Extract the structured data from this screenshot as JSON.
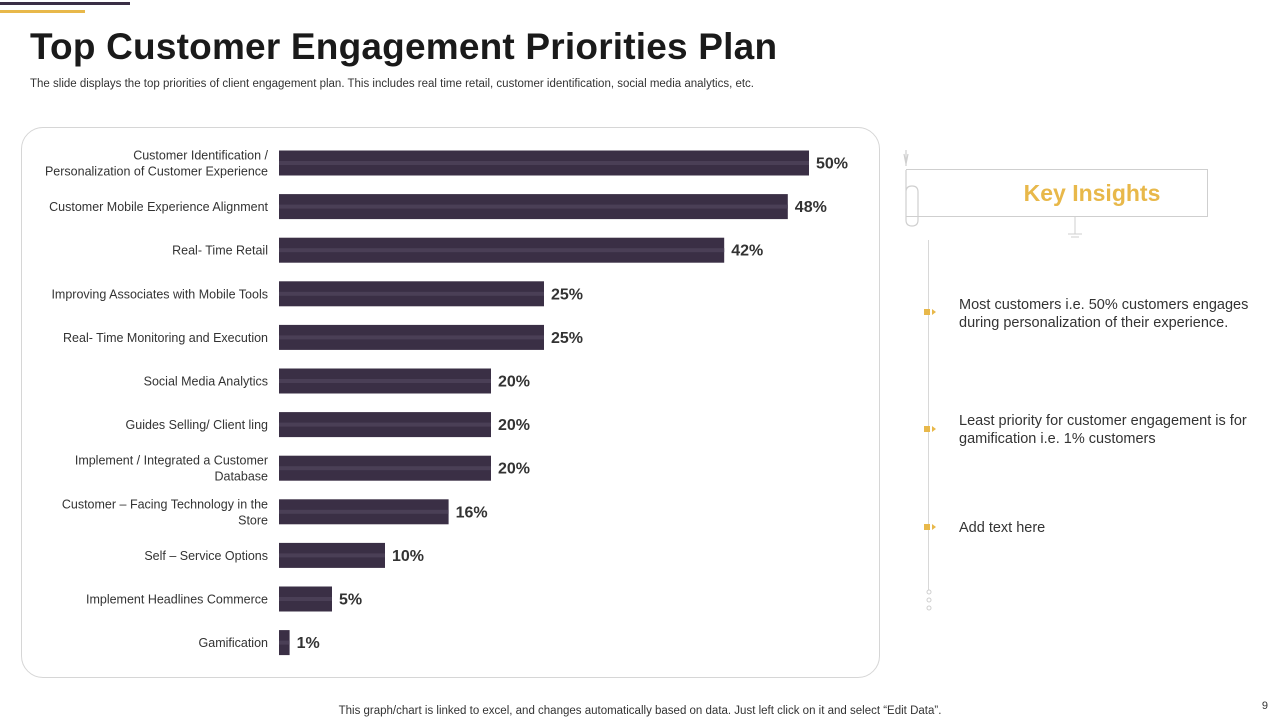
{
  "slide": {
    "title": "Top Customer Engagement Priorities Plan",
    "subtitle": "The slide displays the top priorities of client engagement plan. This includes real time retail, customer identification, social media analytics, etc.",
    "footer_note": "This graph/chart is linked to excel,  and changes automatically based on data. Just left click on it and select “Edit Data”.",
    "page_number": "9",
    "colors": {
      "bar": "#3a2f45",
      "bar_highlight": "#4a3f56",
      "accent_gold": "#e8b84a"
    }
  },
  "chart_data": {
    "type": "bar",
    "orientation": "horizontal",
    "title": "",
    "xlabel": "",
    "ylabel": "",
    "xlim": [
      0,
      50
    ],
    "grid": false,
    "value_format": "percent",
    "categories": [
      [
        "Customer Identification /",
        "Personalization of Customer Experience"
      ],
      [
        "Customer Mobile Experience Alignment"
      ],
      [
        "Real- Time Retail"
      ],
      [
        "Improving  Associates with Mobile Tools"
      ],
      [
        "Real- Time Monitoring and Execution"
      ],
      [
        "Social Media Analytics"
      ],
      [
        "Guides Selling/ Client ling"
      ],
      [
        "Implement  / Integrated a Customer",
        "Database"
      ],
      [
        "Customer – Facing Technology  in the",
        "Store"
      ],
      [
        "Self – Service Options"
      ],
      [
        "Implement Headlines Commerce"
      ],
      [
        "Gamification"
      ]
    ],
    "values": [
      50,
      48,
      42,
      25,
      25,
      20,
      20,
      20,
      16,
      10,
      5,
      1
    ],
    "value_labels": [
      "50%",
      "48%",
      "42%",
      "25%",
      "25%",
      "20%",
      "20%",
      "20%",
      "16%",
      "10%",
      "5%",
      "1%"
    ]
  },
  "insights": {
    "title": "Key Insights",
    "items": [
      {
        "text": "Most customers i.e. 50% customers engages during personalization of their experience."
      },
      {
        "text": "Least priority for customer engagement is for gamification i.e. 1% customers"
      },
      {
        "text": "Add text here"
      }
    ]
  }
}
